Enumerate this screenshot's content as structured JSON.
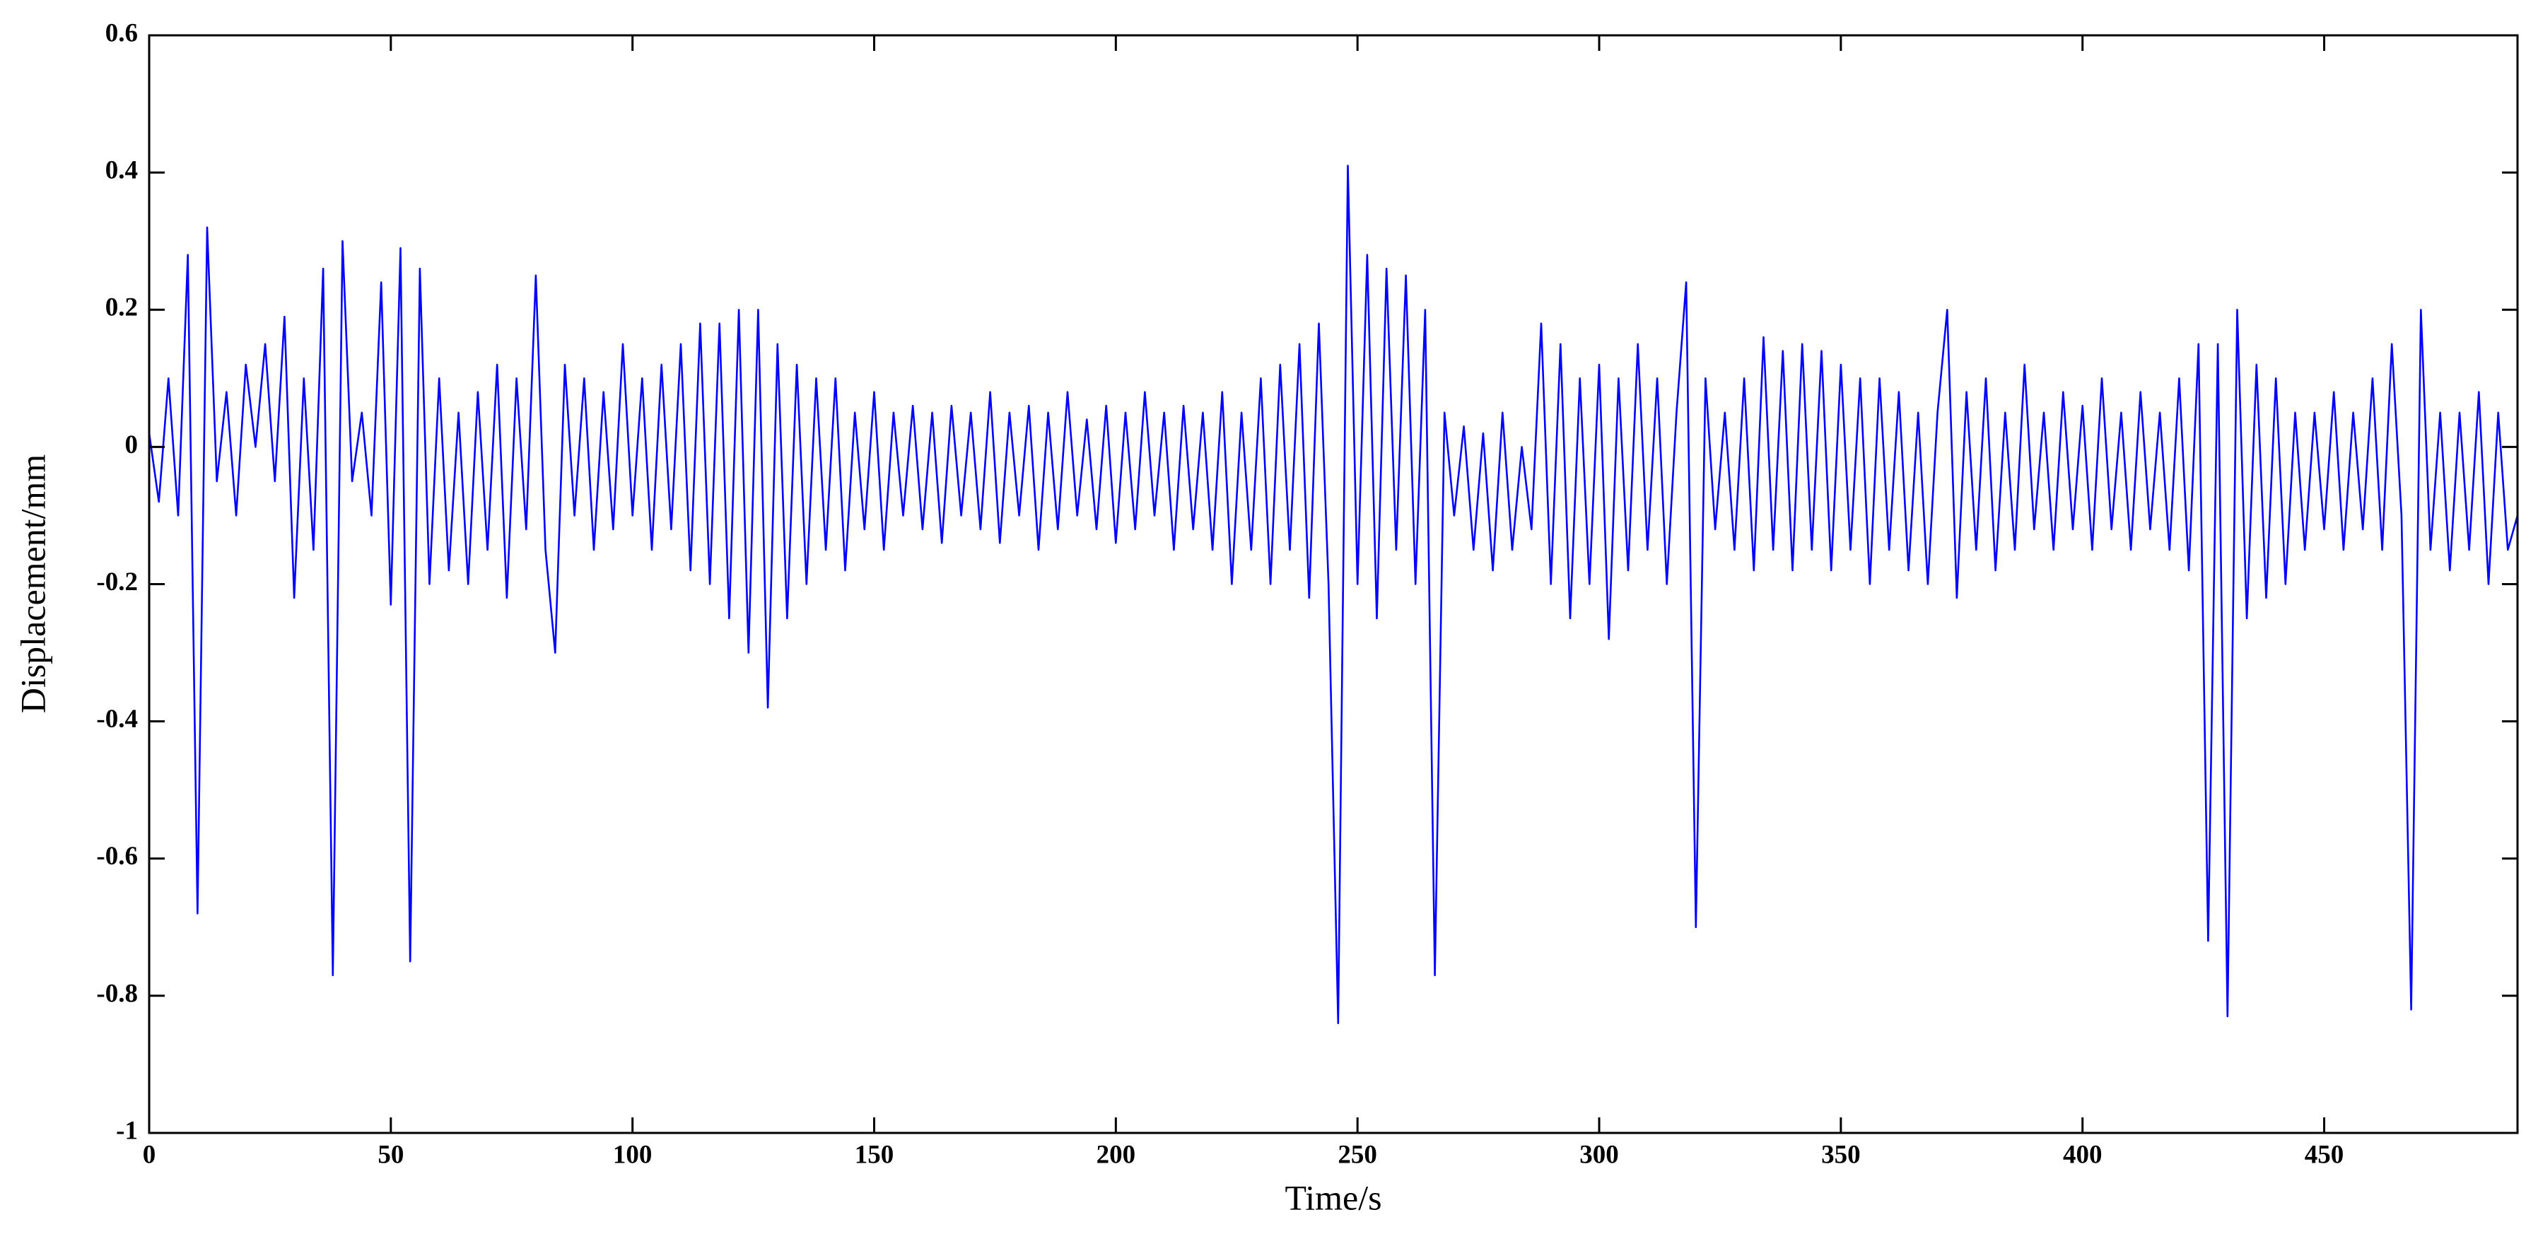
{
  "chart_data": {
    "type": "line",
    "xlabel": "Time/s",
    "ylabel": "Displacement/mm",
    "color": "#0000ff",
    "xlim": [
      0,
      490
    ],
    "ylim": [
      -1,
      0.6
    ],
    "xticks": [
      0,
      50,
      100,
      150,
      200,
      250,
      300,
      350,
      400,
      450
    ],
    "yticks": [
      -1,
      -0.8,
      -0.6,
      -0.4,
      -0.2,
      0,
      0.2,
      0.4,
      0.6
    ],
    "x": [
      0,
      2,
      4,
      6,
      8,
      10,
      12,
      14,
      16,
      18,
      20,
      22,
      24,
      26,
      28,
      30,
      32,
      34,
      36,
      38,
      40,
      42,
      44,
      46,
      48,
      50,
      52,
      54,
      56,
      58,
      60,
      62,
      64,
      66,
      68,
      70,
      72,
      74,
      76,
      78,
      80,
      82,
      84,
      86,
      88,
      90,
      92,
      94,
      96,
      98,
      100,
      102,
      104,
      106,
      108,
      110,
      112,
      114,
      116,
      118,
      120,
      122,
      124,
      126,
      128,
      130,
      132,
      134,
      136,
      138,
      140,
      142,
      144,
      146,
      148,
      150,
      152,
      154,
      156,
      158,
      160,
      162,
      164,
      166,
      168,
      170,
      172,
      174,
      176,
      178,
      180,
      182,
      184,
      186,
      188,
      190,
      192,
      194,
      196,
      198,
      200,
      202,
      204,
      206,
      208,
      210,
      212,
      214,
      216,
      218,
      220,
      222,
      224,
      226,
      228,
      230,
      232,
      234,
      236,
      238,
      240,
      242,
      244,
      246,
      248,
      250,
      252,
      254,
      256,
      258,
      260,
      262,
      264,
      266,
      268,
      270,
      272,
      274,
      276,
      278,
      280,
      282,
      284,
      286,
      288,
      290,
      292,
      294,
      296,
      298,
      300,
      302,
      304,
      306,
      308,
      310,
      312,
      314,
      316,
      318,
      320,
      322,
      324,
      326,
      328,
      330,
      332,
      334,
      336,
      338,
      340,
      342,
      344,
      346,
      348,
      350,
      352,
      354,
      356,
      358,
      360,
      362,
      364,
      366,
      368,
      370,
      372,
      374,
      376,
      378,
      380,
      382,
      384,
      386,
      388,
      390,
      392,
      394,
      396,
      398,
      400,
      402,
      404,
      406,
      408,
      410,
      412,
      414,
      416,
      418,
      420,
      422,
      424,
      426,
      428,
      430,
      432,
      434,
      436,
      438,
      440,
      442,
      444,
      446,
      448,
      450,
      452,
      454,
      456,
      458,
      460,
      462,
      464,
      466,
      468,
      470,
      472,
      474,
      476,
      478,
      480,
      482,
      484,
      486,
      488,
      490
    ],
    "values": [
      0.02,
      -0.08,
      0.1,
      -0.1,
      0.28,
      -0.68,
      0.32,
      -0.05,
      0.08,
      -0.1,
      0.12,
      0.0,
      0.15,
      -0.05,
      0.19,
      -0.22,
      0.1,
      -0.15,
      0.26,
      -0.77,
      0.3,
      -0.05,
      0.05,
      -0.1,
      0.24,
      -0.23,
      0.29,
      -0.75,
      0.26,
      -0.2,
      0.1,
      -0.18,
      0.05,
      -0.2,
      0.08,
      -0.15,
      0.12,
      -0.22,
      0.1,
      -0.12,
      0.25,
      -0.15,
      -0.3,
      0.12,
      -0.1,
      0.1,
      -0.15,
      0.08,
      -0.12,
      0.15,
      -0.1,
      0.1,
      -0.15,
      0.12,
      -0.12,
      0.15,
      -0.18,
      0.18,
      -0.2,
      0.18,
      -0.25,
      0.2,
      -0.3,
      0.2,
      -0.38,
      0.15,
      -0.25,
      0.12,
      -0.2,
      0.1,
      -0.15,
      0.1,
      -0.18,
      0.05,
      -0.12,
      0.08,
      -0.15,
      0.05,
      -0.1,
      0.06,
      -0.12,
      0.05,
      -0.14,
      0.06,
      -0.1,
      0.05,
      -0.12,
      0.08,
      -0.14,
      0.05,
      -0.1,
      0.06,
      -0.15,
      0.05,
      -0.12,
      0.08,
      -0.1,
      0.04,
      -0.12,
      0.06,
      -0.14,
      0.05,
      -0.12,
      0.08,
      -0.1,
      0.05,
      -0.15,
      0.06,
      -0.12,
      0.05,
      -0.15,
      0.08,
      -0.2,
      0.05,
      -0.15,
      0.1,
      -0.2,
      0.12,
      -0.15,
      0.15,
      -0.22,
      0.18,
      -0.2,
      -0.84,
      0.41,
      -0.2,
      0.28,
      -0.25,
      0.26,
      -0.15,
      0.25,
      -0.2,
      0.2,
      -0.77,
      0.05,
      -0.1,
      0.03,
      -0.15,
      0.02,
      -0.18,
      0.05,
      -0.15,
      0.0,
      -0.12,
      0.18,
      -0.2,
      0.15,
      -0.25,
      0.1,
      -0.2,
      0.12,
      -0.28,
      0.1,
      -0.18,
      0.15,
      -0.15,
      0.1,
      -0.2,
      0.05,
      0.24,
      -0.7,
      0.1,
      -0.12,
      0.05,
      -0.15,
      0.1,
      -0.18,
      0.16,
      -0.15,
      0.14,
      -0.18,
      0.15,
      -0.15,
      0.14,
      -0.18,
      0.12,
      -0.15,
      0.1,
      -0.2,
      0.1,
      -0.15,
      0.08,
      -0.18,
      0.05,
      -0.2,
      0.05,
      0.2,
      -0.22,
      0.08,
      -0.15,
      0.1,
      -0.18,
      0.05,
      -0.15,
      0.12,
      -0.12,
      0.05,
      -0.15,
      0.08,
      -0.12,
      0.06,
      -0.15,
      0.1,
      -0.12,
      0.05,
      -0.15,
      0.08,
      -0.12,
      0.05,
      -0.15,
      0.1,
      -0.18,
      0.15,
      -0.72,
      0.15,
      -0.83,
      0.2,
      -0.25,
      0.12,
      -0.22,
      0.1,
      -0.2,
      0.05,
      -0.15,
      0.05,
      -0.12,
      0.08,
      -0.15,
      0.05,
      -0.12,
      0.1,
      -0.15,
      0.15,
      -0.1,
      -0.82,
      0.2,
      -0.15,
      0.05,
      -0.18,
      0.05,
      -0.15,
      0.08,
      -0.2,
      0.05,
      -0.15,
      -0.1
    ]
  }
}
